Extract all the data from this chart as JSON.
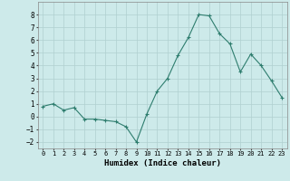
{
  "x": [
    0,
    1,
    2,
    3,
    4,
    5,
    6,
    7,
    8,
    9,
    10,
    11,
    12,
    13,
    14,
    15,
    16,
    17,
    18,
    19,
    20,
    21,
    22,
    23
  ],
  "y": [
    0.8,
    1.0,
    0.5,
    0.7,
    -0.2,
    -0.2,
    -0.3,
    -0.4,
    -0.8,
    -2.0,
    0.2,
    2.0,
    3.0,
    4.8,
    6.2,
    8.0,
    7.9,
    6.5,
    5.7,
    3.5,
    4.9,
    4.0,
    2.8,
    1.5
  ],
  "line_color": "#2e7d6e",
  "marker": "+",
  "marker_size": 3,
  "marker_lw": 0.8,
  "line_width": 0.8,
  "xlabel": "Humidex (Indice chaleur)",
  "ylim": [
    -2.5,
    9.0
  ],
  "xlim": [
    -0.5,
    23.5
  ],
  "yticks": [
    -2,
    -1,
    0,
    1,
    2,
    3,
    4,
    5,
    6,
    7,
    8
  ],
  "xticks": [
    0,
    1,
    2,
    3,
    4,
    5,
    6,
    7,
    8,
    9,
    10,
    11,
    12,
    13,
    14,
    15,
    16,
    17,
    18,
    19,
    20,
    21,
    22,
    23
  ],
  "xtick_labels": [
    "0",
    "1",
    "2",
    "3",
    "4",
    "5",
    "6",
    "7",
    "8",
    "9",
    "10",
    "11",
    "12",
    "13",
    "14",
    "15",
    "16",
    "17",
    "18",
    "19",
    "20",
    "21",
    "22",
    "23"
  ],
  "bg_color": "#cdeaea",
  "grid_color": "#b0d0d0",
  "xlabel_fontsize": 6.5,
  "ytick_fontsize": 5.5,
  "xtick_fontsize": 5.0
}
